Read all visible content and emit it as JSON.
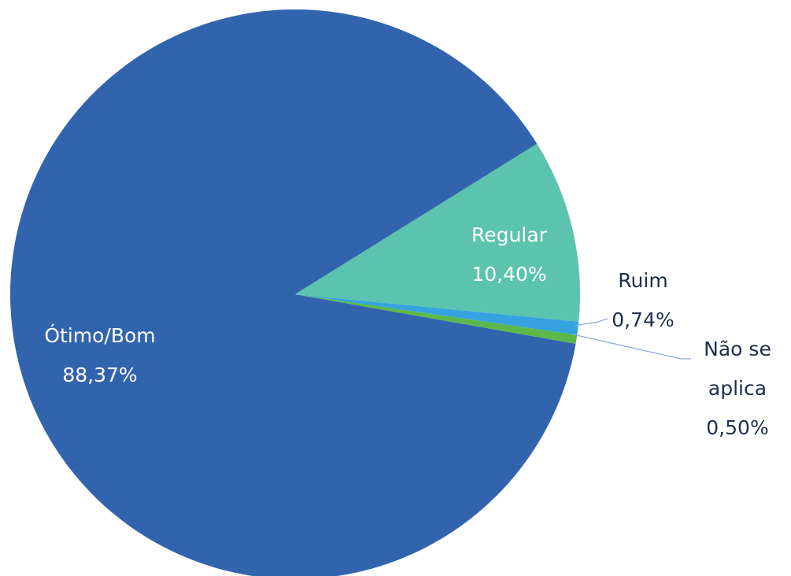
{
  "chart_data": {
    "type": "pie",
    "categories": [
      "Ótimo/Bom",
      "Regular",
      "Ruim",
      "Não se aplica"
    ],
    "values": [
      88.37,
      10.4,
      0.74,
      0.5
    ],
    "value_labels": [
      "88,37%",
      "10,40%",
      "0,74%",
      "0,50%"
    ],
    "colors": [
      "#3264ae",
      "#5cc3ae",
      "#36a2e0",
      "#5bb94a"
    ]
  }
}
